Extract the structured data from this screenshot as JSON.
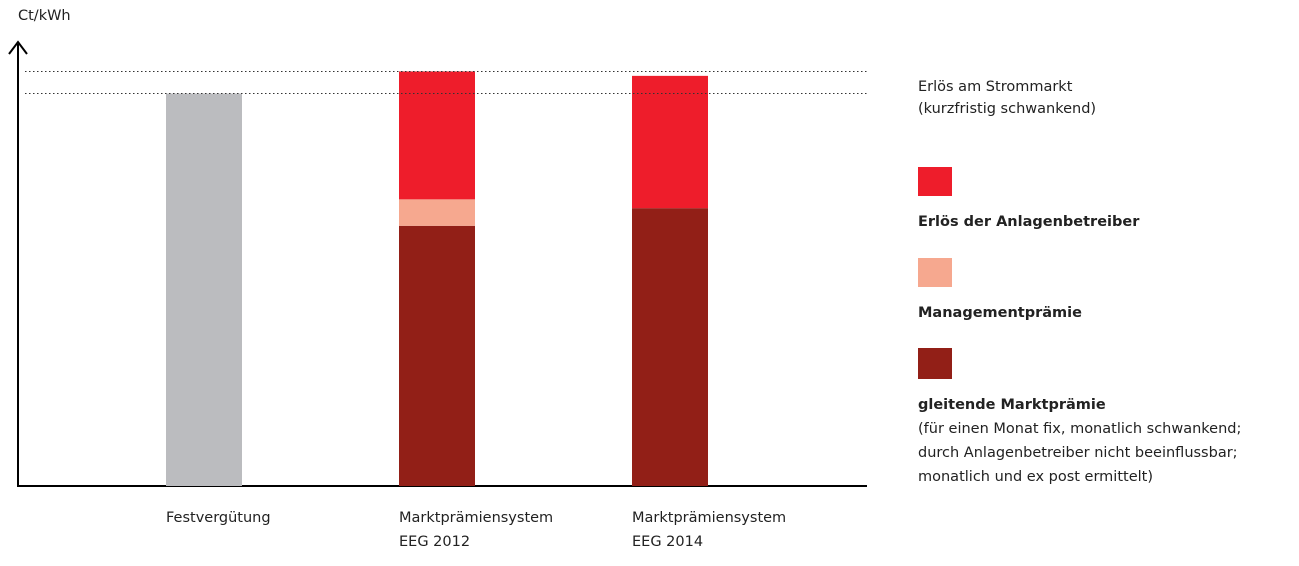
{
  "chart_data": {
    "type": "stacked_bar",
    "y_label": "Ct/kWh",
    "categories": [
      "Festvergütung",
      "Marktprämiensystem\nEEG 2012",
      "Marktprämiensystem\nEEG 2014"
    ],
    "ylim": [
      0,
      100
    ],
    "series": [
      {
        "name": "gleitende Marktprämie",
        "note": "(für einen Monat fix, monatlich schwankend;\ndurch Anlagenbetreiber nicht beeinflussbar;\nmonatlich und ex post ermittelt)",
        "color": "#921f17",
        "values": [
          null,
          59,
          63
        ]
      },
      {
        "name": "Managementprämie",
        "color": "#f6a88f",
        "values": [
          null,
          6,
          null
        ]
      },
      {
        "name": "Erlös am Strommarkt",
        "note": "(kurzfristig schwankend)",
        "color": "#ee1d2b",
        "values": [
          null,
          29,
          30
        ]
      },
      {
        "color": "#bbbcbf",
        "values": [
          89,
          null,
          null
        ]
      }
    ],
    "legend_heading": "Erlös der Anlagenbetreiber"
  }
}
